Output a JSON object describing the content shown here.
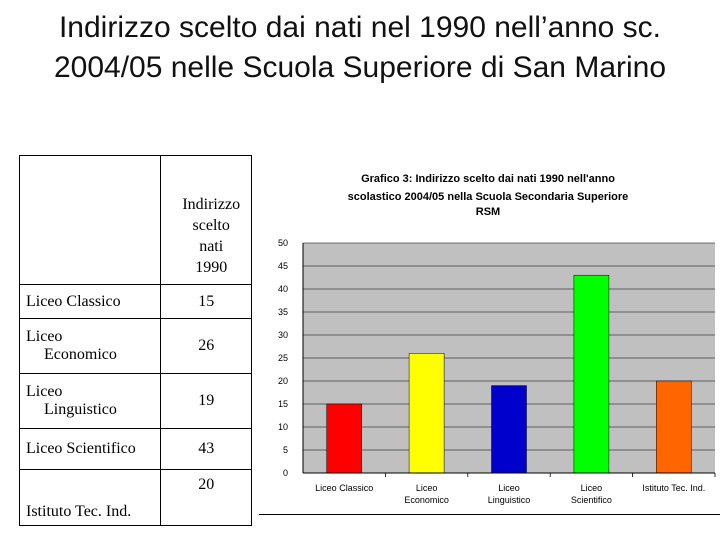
{
  "title": "Indirizzo scelto dai nati nel 1990 nell’anno sc. 2004/05 nelle Scuola Superiore di San Marino",
  "table": {
    "header": [
      "Indirizzo",
      "scelto",
      "nati",
      "1990"
    ],
    "rows": [
      {
        "label_lines": [
          "Liceo Classico"
        ],
        "value": "15"
      },
      {
        "label_lines": [
          "Liceo",
          "Economico"
        ],
        "value": "26"
      },
      {
        "label_lines": [
          "Liceo",
          "Linguistico"
        ],
        "value": "19"
      },
      {
        "label_lines": [
          "Liceo Scientifico"
        ],
        "value": "43"
      },
      {
        "label_lines": [
          "Istituto Tec. Ind."
        ],
        "value": "20"
      }
    ]
  },
  "chart_data": {
    "type": "bar",
    "title": "Grafico 3: Indirizzo scelto dai nati 1990 nell'anno scolastico 2004/05 nella Scuola Secondaria Superiore RSM",
    "title_lines": [
      "Grafico 3: Indirizzo scelto dai nati 1990 nell'anno",
      "scolastico 2004/05 nella Scuola Secondaria Superiore",
      "RSM"
    ],
    "categories": [
      "Liceo Classico",
      "Liceo Economico",
      "Liceo Linguistico",
      "Liceo Scientifico",
      "Istituto Tec. Ind."
    ],
    "category_lines": [
      [
        "Liceo Classico"
      ],
      [
        "Liceo",
        "Economico"
      ],
      [
        "Liceo",
        "Linguistico"
      ],
      [
        "Liceo",
        "Scientifico"
      ],
      [
        "Istituto Tec. Ind."
      ]
    ],
    "values": [
      15,
      26,
      19,
      43,
      20
    ],
    "colors": [
      "#ff0000",
      "#ffff00",
      "#0000cc",
      "#00ff00",
      "#ff6600"
    ],
    "ylim": [
      0,
      50
    ],
    "yticks": [
      0,
      5,
      10,
      15,
      20,
      25,
      30,
      35,
      40,
      45,
      50
    ],
    "grid": true,
    "plot_background": "#c0c0c0",
    "xlabel": "",
    "ylabel": ""
  }
}
